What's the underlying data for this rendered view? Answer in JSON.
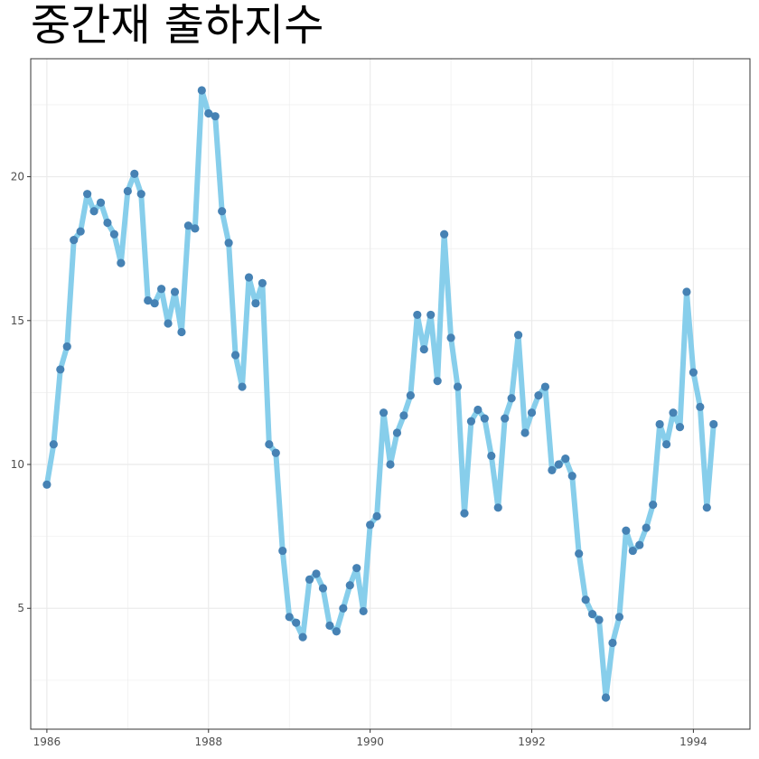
{
  "chart_data": {
    "type": "line",
    "title": "중간재 출하지수",
    "xlabel": "",
    "ylabel": "",
    "xlim": [
      1985.8,
      1994.7
    ],
    "ylim": [
      0.8,
      24.1
    ],
    "x_ticks": [
      1986,
      1988,
      1990,
      1992,
      1994
    ],
    "y_ticks": [
      5,
      10,
      15,
      20
    ],
    "grid": true,
    "legend": "none",
    "colors": {
      "line": "#87CEEB",
      "points": "#4682B4",
      "grid": "#ebebeb",
      "border": "#333333"
    },
    "series": [
      {
        "x_start": 1986,
        "frequency": "monthly",
        "values": [
          9.3,
          10.7,
          13.3,
          14.1,
          17.8,
          18.1,
          19.4,
          18.8,
          19.1,
          18.4,
          18.0,
          17.0,
          19.5,
          20.1,
          19.4,
          15.7,
          15.6,
          16.1,
          14.9,
          16.0,
          14.6,
          18.3,
          18.2,
          23.0,
          22.2,
          22.1,
          18.8,
          17.7,
          13.8,
          12.7,
          16.5,
          15.6,
          16.3,
          10.7,
          10.4,
          7.0,
          4.7,
          4.5,
          4.0,
          6.0,
          6.2,
          5.7,
          4.4,
          4.2,
          5.0,
          5.8,
          6.4,
          4.9,
          7.9,
          8.2,
          11.8,
          10.0,
          11.1,
          11.7,
          12.4,
          15.2,
          14.0,
          15.2,
          12.9,
          18.0,
          14.4,
          12.7,
          8.3,
          11.5,
          11.9,
          11.6,
          10.3,
          8.5,
          11.6,
          12.3,
          14.5,
          11.1,
          11.8,
          12.4,
          12.7,
          9.8,
          10.0,
          10.2,
          9.6,
          6.9,
          5.3,
          4.8,
          4.6,
          1.9,
          3.8,
          4.7,
          7.7,
          7.0,
          7.2,
          7.8,
          8.6,
          11.4,
          10.7,
          11.8,
          11.3,
          16.0,
          13.2,
          12.0,
          8.5,
          11.4
        ]
      }
    ]
  }
}
